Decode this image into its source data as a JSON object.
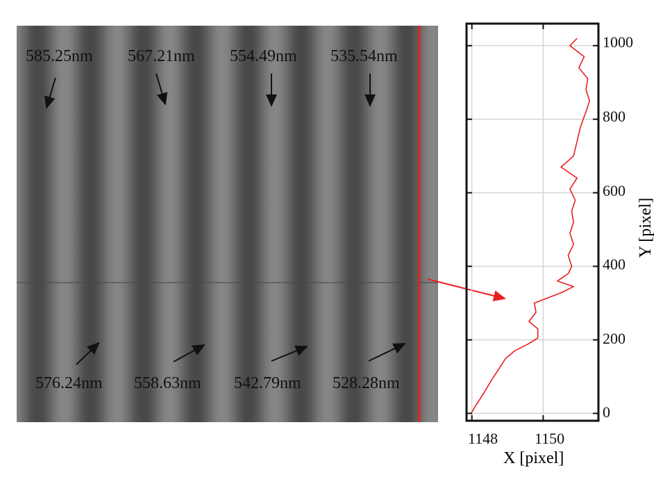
{
  "image_panel": {
    "top_labels": [
      "585.25nm",
      "567.21nm",
      "554.49nm",
      "535.54nm"
    ],
    "bottom_labels": [
      "576.24nm",
      "558.63nm",
      "542.79nm",
      "528.28nm"
    ],
    "line_color": "#e8201c",
    "background_color": "#5a5a5a",
    "fringe_count": 8
  },
  "chart_data": {
    "type": "line",
    "title": "",
    "xlabel": "X  [pixel]",
    "ylabel": "Y [pixel]",
    "xlim": [
      1147.85,
      1151.55
    ],
    "ylim": [
      -20,
      1060
    ],
    "xticks": [
      1148,
      1150
    ],
    "yticks": [
      0,
      200,
      400,
      600,
      800,
      1000
    ],
    "grid": true,
    "series": [
      {
        "color": "#e8201c",
        "points": [
          [
            1147.98,
            0
          ],
          [
            1148.1,
            20
          ],
          [
            1148.3,
            50
          ],
          [
            1148.55,
            90
          ],
          [
            1148.75,
            120
          ],
          [
            1148.95,
            150
          ],
          [
            1149.2,
            170
          ],
          [
            1149.6,
            190
          ],
          [
            1149.85,
            205
          ],
          [
            1149.85,
            230
          ],
          [
            1149.6,
            250
          ],
          [
            1149.8,
            275
          ],
          [
            1149.75,
            300
          ],
          [
            1150.15,
            315
          ],
          [
            1150.55,
            330
          ],
          [
            1150.85,
            345
          ],
          [
            1150.4,
            360
          ],
          [
            1150.7,
            380
          ],
          [
            1150.8,
            400
          ],
          [
            1150.7,
            430
          ],
          [
            1150.85,
            460
          ],
          [
            1150.75,
            490
          ],
          [
            1150.85,
            520
          ],
          [
            1150.8,
            550
          ],
          [
            1150.9,
            580
          ],
          [
            1150.75,
            610
          ],
          [
            1150.95,
            640
          ],
          [
            1150.5,
            670
          ],
          [
            1150.85,
            700
          ],
          [
            1150.95,
            740
          ],
          [
            1151.05,
            780
          ],
          [
            1151.2,
            820
          ],
          [
            1151.3,
            850
          ],
          [
            1151.2,
            880
          ],
          [
            1151.25,
            910
          ],
          [
            1151.0,
            940
          ],
          [
            1151.15,
            970
          ],
          [
            1150.75,
            1000
          ],
          [
            1150.95,
            1020
          ]
        ]
      }
    ]
  }
}
